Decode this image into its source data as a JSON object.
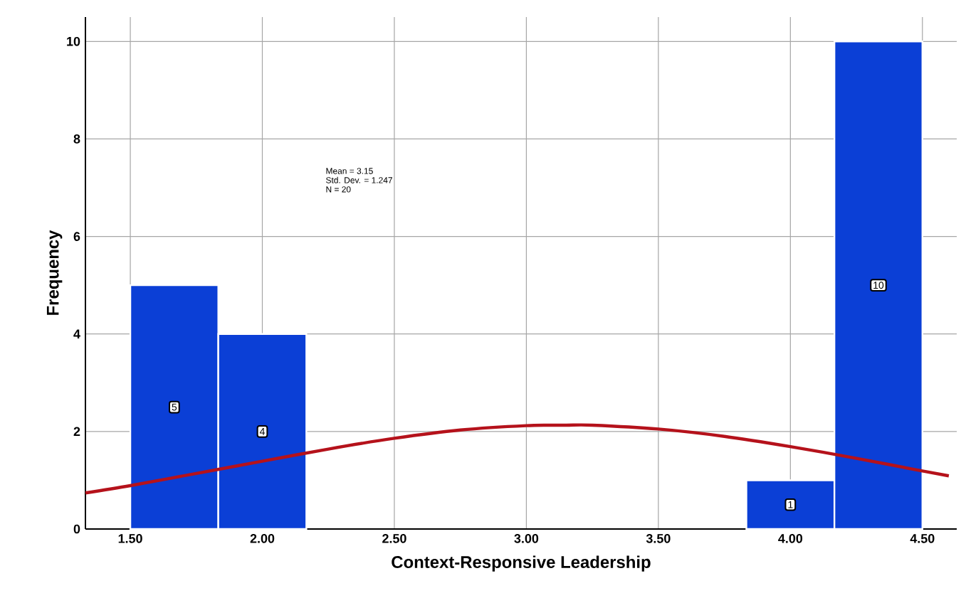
{
  "chart_data": {
    "type": "histogram",
    "xlabel": "Context-Responsive Leadership",
    "ylabel": "Frequency",
    "bins": [
      1.5,
      1.8333,
      2.1667,
      2.5,
      2.8333,
      3.1667,
      3.5,
      3.8333,
      4.1667,
      4.5
    ],
    "values": [
      5,
      4,
      0,
      0,
      0,
      0,
      0,
      1,
      10
    ],
    "color": "#0b3fd6",
    "value_labels": [
      "5",
      "4",
      null,
      null,
      null,
      null,
      null,
      "1",
      "10"
    ],
    "series": [
      {
        "type": "line",
        "color": "#b5121b",
        "x": [
          1.33,
          1.5,
          1.75,
          2.0,
          2.25,
          2.5,
          2.75,
          3.0,
          3.15,
          3.25,
          3.5,
          3.75,
          4.0,
          4.25,
          4.5,
          4.6
        ],
        "values": [
          0.74,
          0.89,
          1.14,
          1.39,
          1.64,
          1.86,
          2.03,
          2.12,
          2.13,
          2.13,
          2.05,
          1.9,
          1.69,
          1.45,
          1.19,
          1.09
        ]
      }
    ],
    "annotations": [
      "Mean = 3.15",
      "Std. Dev. = 1.247",
      "N = 20"
    ],
    "xlim": [
      1.33,
      4.63
    ],
    "ylim": [
      0,
      10.5
    ],
    "xticks": [
      {
        "value": 1.5,
        "label": "1.50"
      },
      {
        "value": 2.0,
        "label": "2.00"
      },
      {
        "value": 2.5,
        "label": "2.50"
      },
      {
        "value": 3.0,
        "label": "3.00"
      },
      {
        "value": 3.5,
        "label": "3.50"
      },
      {
        "value": 4.0,
        "label": "4.00"
      },
      {
        "value": 4.5,
        "label": "4.50"
      }
    ],
    "yticks": [
      0,
      2,
      4,
      6,
      8,
      10
    ],
    "grid": true
  }
}
